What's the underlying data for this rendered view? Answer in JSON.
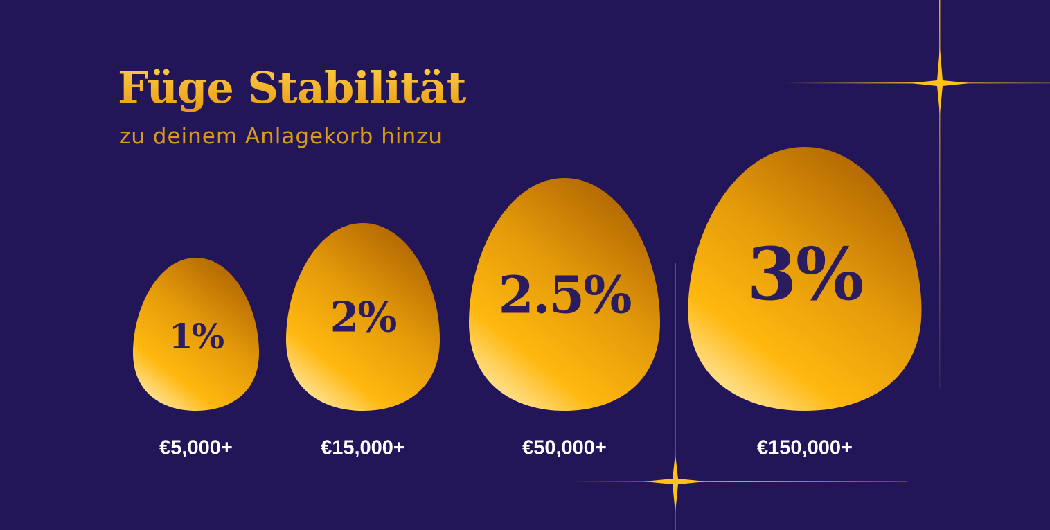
{
  "header": {
    "title": "Füge Stabilität",
    "subtitle": "zu deinem Anlagekorb hinzu"
  },
  "tiers": [
    {
      "rate": "1%",
      "threshold": "€5,000+"
    },
    {
      "rate": "2%",
      "threshold": "€15,000+"
    },
    {
      "rate": "2.5%",
      "threshold": "€50,000+"
    },
    {
      "rate": "3%",
      "threshold": "€150,000+"
    }
  ]
}
